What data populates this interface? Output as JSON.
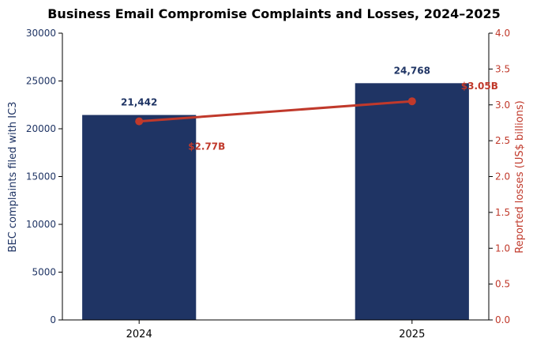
{
  "chart_data": {
    "type": "bar+line",
    "title": "Business Email Compromise Complaints and Losses, 2024–2025",
    "categories": [
      "2024",
      "2025"
    ],
    "y_left": {
      "label": "BEC complaints filed with IC3",
      "lim": [
        0,
        30000
      ],
      "ticks": [
        0,
        5000,
        10000,
        15000,
        20000,
        25000,
        30000
      ],
      "tick_labels": [
        "0",
        "5000",
        "10000",
        "15000",
        "20000",
        "25000",
        "30000"
      ],
      "color": "#1f3464"
    },
    "y_right": {
      "label": "Reported losses (US$ billions)",
      "lim": [
        0,
        4.0
      ],
      "ticks": [
        0,
        0.5,
        1.0,
        1.5,
        2.0,
        2.5,
        3.0,
        3.5,
        4.0
      ],
      "tick_labels": [
        "0.0",
        "0.5",
        "1.0",
        "1.5",
        "2.0",
        "2.5",
        "3.0",
        "3.5",
        "4.0"
      ],
      "color": "#c0392b"
    },
    "bars": {
      "values": [
        21442,
        24768
      ],
      "data_labels": [
        "21,442",
        "24,768"
      ],
      "color": "#1f3464"
    },
    "line": {
      "values": [
        2.77,
        3.05
      ],
      "data_labels": [
        "$2.77B",
        "$3.05B"
      ],
      "color": "#c0392b"
    },
    "grid": false,
    "legend": "none"
  }
}
